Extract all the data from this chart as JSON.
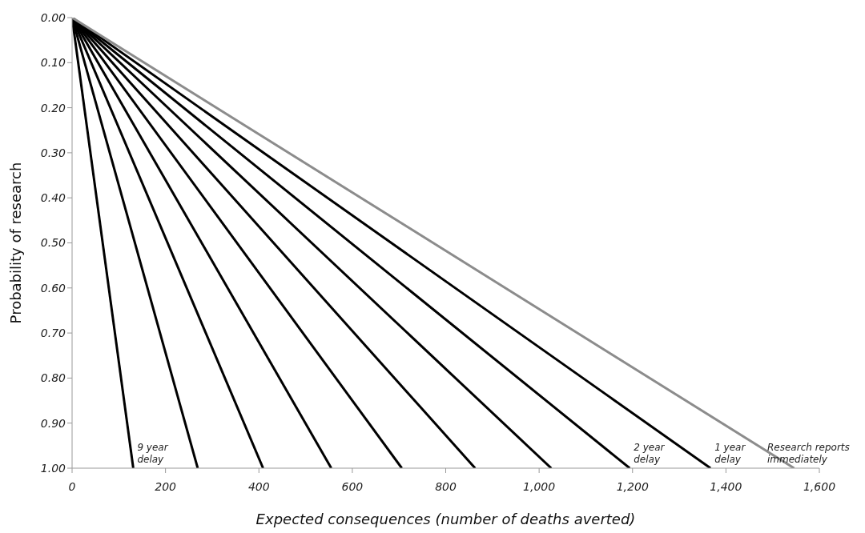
{
  "chart_data": {
    "type": "line",
    "xlabel": "Expected consequences (number of deaths averted)",
    "ylabel": "Probability of research",
    "xlim": [
      0,
      1600
    ],
    "xticks": [
      0,
      200,
      400,
      600,
      800,
      {
        "value": 1000,
        "label": "1,000"
      },
      {
        "value": 1200,
        "label": "1,200"
      },
      {
        "value": 1400,
        "label": "1,400"
      },
      {
        "value": 1600,
        "label": "1,600"
      }
    ],
    "ylim": [
      1,
      0
    ],
    "yticks": [
      {
        "value": 0,
        "label": "0.00"
      },
      {
        "value": 0.1,
        "label": "0.10"
      },
      {
        "value": 0.2,
        "label": "0.20"
      },
      {
        "value": 0.3,
        "label": "0.30"
      },
      {
        "value": 0.4,
        "label": "0.40"
      },
      {
        "value": 0.5,
        "label": "0.50"
      },
      {
        "value": 0.6,
        "label": "0.60"
      },
      {
        "value": 0.7,
        "label": "0.70"
      },
      {
        "value": 0.8,
        "label": "0.80"
      },
      {
        "value": 0.9,
        "label": "0.90"
      },
      {
        "value": 1,
        "label": "1.00"
      }
    ],
    "grid": false,
    "marker": "none",
    "line_style": "solid",
    "series": [
      {
        "name": "9 year delay",
        "color": "#000000",
        "x": [
          0,
          131
        ],
        "values": [
          0,
          1
        ]
      },
      {
        "color": "#000000",
        "x": [
          0,
          269
        ],
        "values": [
          0,
          1
        ]
      },
      {
        "color": "#000000",
        "x": [
          0,
          409
        ],
        "values": [
          0,
          1
        ]
      },
      {
        "color": "#000000",
        "x": [
          0,
          555
        ],
        "values": [
          0,
          1
        ]
      },
      {
        "color": "#000000",
        "x": [
          0,
          706
        ],
        "values": [
          0,
          1
        ]
      },
      {
        "color": "#000000",
        "x": [
          0,
          863
        ],
        "values": [
          0,
          1
        ]
      },
      {
        "color": "#000000",
        "x": [
          0,
          1026
        ],
        "values": [
          0,
          1
        ]
      },
      {
        "name": "2 year delay",
        "color": "#000000",
        "x": [
          0,
          1194
        ],
        "values": [
          0,
          1
        ]
      },
      {
        "name": "1 year delay",
        "color": "#000000",
        "x": [
          0,
          1367
        ],
        "values": [
          0,
          1
        ]
      },
      {
        "name": "Research reports immediately",
        "color": "#8c8c8c",
        "x": [
          0,
          1546
        ],
        "values": [
          0,
          1
        ]
      }
    ]
  }
}
